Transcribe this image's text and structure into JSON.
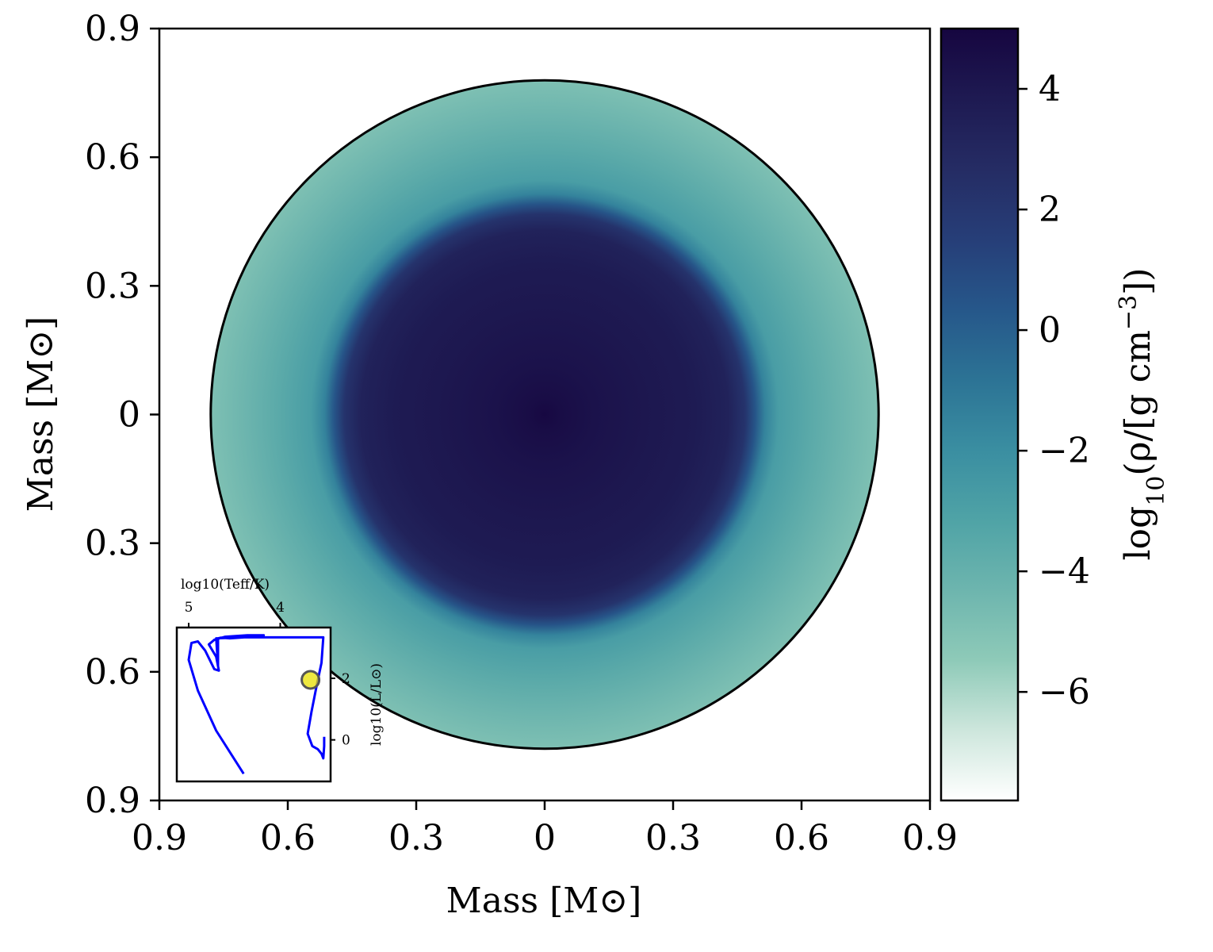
{
  "chart_data": {
    "type": "heatmap",
    "title": "",
    "xlabel": "Mass [M⊙]",
    "ylabel": "Mass [M⊙]",
    "xlim": [
      -0.9,
      0.9
    ],
    "ylim": [
      -0.9,
      0.9
    ],
    "x_ticks": [
      -0.9,
      -0.6,
      -0.3,
      0,
      0.3,
      0.6,
      0.9
    ],
    "x_tick_labels": [
      "0.9",
      "0.6",
      "0.3",
      "0",
      "0.3",
      "0.6",
      "0.9"
    ],
    "y_ticks": [
      0.9,
      0.6,
      0.3,
      0,
      -0.3,
      -0.6,
      -0.9
    ],
    "y_tick_labels": [
      "0.9",
      "0.6",
      "0.3",
      "0",
      "0.3",
      "0.6",
      "0.9"
    ],
    "star_radius": 0.78,
    "density_profile": {
      "r_fraction": [
        0.0,
        0.05,
        0.15,
        0.3,
        0.45,
        0.55,
        0.6,
        0.63,
        0.66,
        0.7,
        0.8,
        0.9,
        1.0
      ],
      "log10_rho": [
        4.9,
        4.6,
        4.3,
        4.0,
        3.8,
        3.3,
        2.2,
        0.5,
        -1.5,
        -2.8,
        -3.6,
        -4.3,
        -4.9
      ]
    },
    "colorbar": {
      "label": "log10(ρ/[g cm^-3])",
      "label_parts": {
        "base": "log",
        "sub": "10",
        "open": "(ρ/[g cm",
        "sup": "−3",
        "close": "])"
      },
      "vmin": -7.8,
      "vmax": 5.0,
      "ticks": [
        4,
        2,
        0,
        -2,
        -4,
        -6
      ],
      "tick_labels": [
        "4",
        "2",
        "0",
        "−2",
        "−4",
        "−6"
      ],
      "colormap_stops": [
        "#ffffff",
        "#cde6dc",
        "#8ecab8",
        "#6db5ae",
        "#4fa3a6",
        "#3a8ea1",
        "#2c7395",
        "#26578a",
        "#263e78",
        "#252c64",
        "#1e1a52",
        "#160640"
      ]
    },
    "inset": {
      "type": "line",
      "xlabel": "log10(Teff/K)",
      "ylabel": "log10(L/L⊙)",
      "x_ticks": [
        5,
        4
      ],
      "x_tick_labels": [
        "5",
        "4"
      ],
      "y_ticks": [
        2,
        0
      ],
      "y_tick_labels": [
        "2",
        "0"
      ],
      "xlim": [
        5.13,
        3.45
      ],
      "ylim": [
        -1.35,
        3.65
      ],
      "series": [
        {
          "name": "evolutionary track",
          "color": "#0000ff",
          "points": [
            [
              4.4,
              -1.1
            ],
            [
              4.7,
              0.3
            ],
            [
              4.9,
              1.6
            ],
            [
              5.0,
              2.6
            ],
            [
              4.97,
              3.15
            ],
            [
              4.9,
              3.2
            ],
            [
              4.82,
              2.9
            ],
            [
              4.72,
              2.3
            ],
            [
              4.67,
              2.25
            ],
            [
              4.7,
              2.7
            ],
            [
              4.78,
              3.1
            ],
            [
              4.72,
              3.25
            ],
            [
              4.6,
              3.35
            ],
            [
              4.36,
              3.4
            ],
            [
              4.18,
              3.4
            ],
            [
              4.3,
              3.35
            ],
            [
              4.55,
              3.3
            ],
            [
              4.65,
              3.32
            ],
            [
              4.68,
              3.3
            ],
            [
              4.68,
              2.4
            ],
            [
              4.7,
              3.3
            ],
            [
              4.4,
              3.33
            ],
            [
              3.95,
              3.33
            ],
            [
              3.63,
              3.33
            ],
            [
              3.53,
              3.33
            ],
            [
              3.55,
              2.5
            ],
            [
              3.6,
              1.8
            ],
            [
              3.66,
              0.9
            ],
            [
              3.7,
              0.2
            ],
            [
              3.65,
              -0.2
            ],
            [
              3.59,
              -0.3
            ],
            [
              3.55,
              -0.45
            ],
            [
              3.53,
              -0.6
            ],
            [
              3.52,
              -0.2
            ],
            [
              3.52,
              0.1
            ]
          ]
        }
      ],
      "current_point": {
        "x": 3.67,
        "y": 1.95,
        "color": "#e8e000"
      }
    }
  }
}
